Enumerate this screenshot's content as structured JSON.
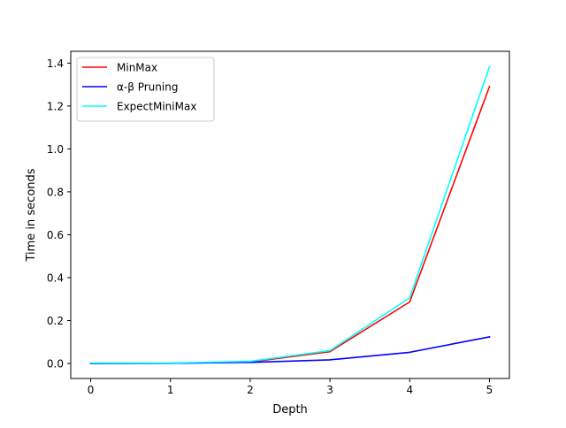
{
  "chart_data": {
    "type": "line",
    "title": "",
    "xlabel": "Depth",
    "ylabel": "Time in seconds",
    "xlim": [
      -0.25,
      5.25
    ],
    "ylim": [
      -0.07,
      1.455
    ],
    "xticks": [
      0,
      1,
      2,
      3,
      4,
      5
    ],
    "xtick_labels": [
      "0",
      "1",
      "2",
      "3",
      "4",
      "5"
    ],
    "yticks": [
      0.0,
      0.2,
      0.4,
      0.6,
      0.8,
      1.0,
      1.2,
      1.4
    ],
    "ytick_labels": [
      "0.0",
      "0.2",
      "0.4",
      "0.6",
      "0.8",
      "1.0",
      "1.2",
      "1.4"
    ],
    "grid": false,
    "legend_position": "upper-left",
    "x": [
      0,
      1,
      2,
      3,
      4,
      5
    ],
    "series": [
      {
        "name": "MinMax",
        "color": "#ff0000",
        "values": [
          0.0,
          0.001,
          0.007,
          0.055,
          0.287,
          1.29
        ]
      },
      {
        "name": "α-β Pruning",
        "color": "#0000ff",
        "values": [
          0.0,
          0.001,
          0.005,
          0.017,
          0.052,
          0.124
        ]
      },
      {
        "name": "ExpectMiniMax",
        "color": "#00ffff",
        "values": [
          0.002,
          0.002,
          0.01,
          0.06,
          0.306,
          1.383
        ]
      }
    ]
  }
}
